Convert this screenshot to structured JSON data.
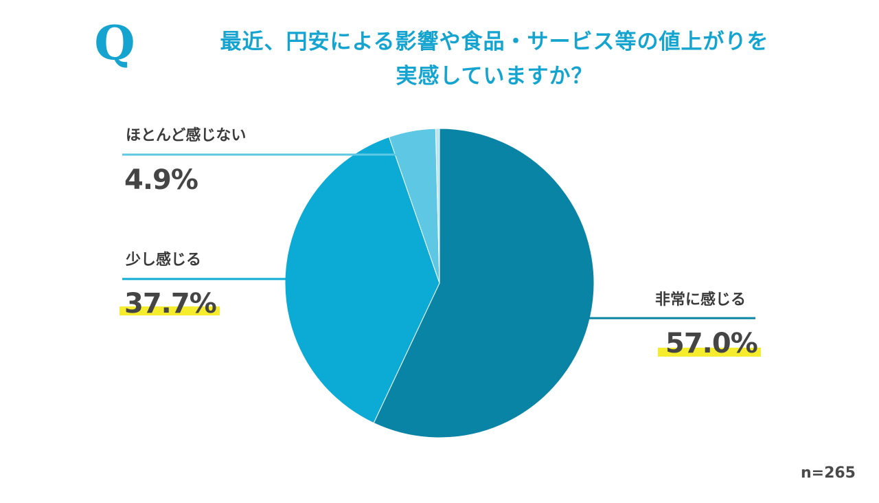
{
  "question": {
    "mark": "Q",
    "line1": "最近、円安による影響や食品・サービス等の値上がりを",
    "line2": "実感していますか？"
  },
  "sample_size": "n=265",
  "colors": {
    "title": "#14a4cf",
    "highlight": "#f4ec2c",
    "leader_line": "#2a8fb0"
  },
  "chart_data": {
    "type": "pie",
    "title": "最近、円安による影響や食品・サービス等の値上がりを実感していますか？",
    "slices": [
      {
        "label": "非常に感じる",
        "value": 57.0,
        "display": "57.0%",
        "color": "#0a84a5"
      },
      {
        "label": "少し感じる",
        "value": 37.7,
        "display": "37.7%",
        "color": "#0cabd5"
      },
      {
        "label": "ほとんど感じない",
        "value": 4.9,
        "display": "4.9%",
        "color": "#5ec7e3"
      },
      {
        "label": "",
        "value": 0.4,
        "display": "",
        "color": "#b9e5f2"
      }
    ],
    "start_angle_deg": 0,
    "direction": "clockwise"
  }
}
